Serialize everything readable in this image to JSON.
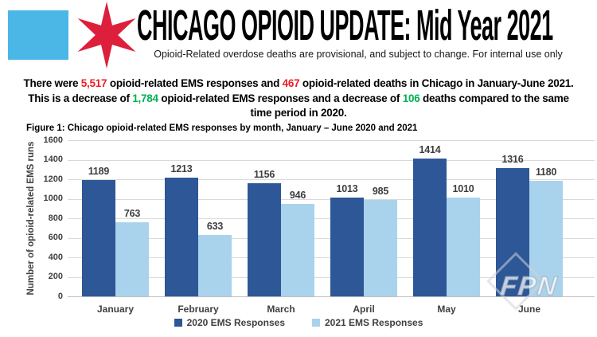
{
  "header": {
    "title": "CHICAGO OPIOID UPDATE: Mid Year 2021",
    "subtitle": "Opioid-Related overdose deaths are provisional, and subject to change. For internal use only",
    "flag": {
      "square_color": "#4AB7E6",
      "star_color": "#DE1F3C"
    }
  },
  "summary": {
    "lines": [
      [
        {
          "text": "There were ",
          "color": "#000000"
        },
        {
          "text": "5,517",
          "color": "#EE1D25"
        },
        {
          "text": " opioid-related EMS responses and ",
          "color": "#000000"
        },
        {
          "text": "467",
          "color": "#EE1D25"
        },
        {
          "text": " opioid-related deaths in Chicago in January-June 2021.",
          "color": "#000000"
        }
      ],
      [
        {
          "text": "This is a decrease of ",
          "color": "#000000"
        },
        {
          "text": "1,784",
          "color": "#00B050"
        },
        {
          "text": " opioid-related EMS responses and a decrease of ",
          "color": "#000000"
        },
        {
          "text": "106",
          "color": "#00B050"
        },
        {
          "text": " deaths compared to the same",
          "color": "#000000"
        }
      ],
      [
        {
          "text": "time period in 2020.",
          "color": "#000000"
        }
      ]
    ]
  },
  "chart_data": {
    "type": "bar",
    "title": "Figure 1: Chicago opioid-related EMS responses by month, January – June 2020 and 2021",
    "categories": [
      "January",
      "February",
      "March",
      "April",
      "May",
      "June"
    ],
    "series": [
      {
        "name": "2020 EMS Responses",
        "color": "#2D5796",
        "values": [
          1189,
          1213,
          1156,
          1013,
          1414,
          1316
        ]
      },
      {
        "name": "2021 EMS Responses",
        "color": "#A9D3EC",
        "values": [
          763,
          633,
          946,
          985,
          1010,
          1180
        ]
      }
    ],
    "ylabel": "Number of opioid-related EMS runs",
    "ylim": [
      0,
      1600
    ],
    "ytick_step": 200,
    "grid": true,
    "legend_position": "bottom",
    "value_labels": true
  },
  "watermark": {
    "text": "FPN"
  }
}
